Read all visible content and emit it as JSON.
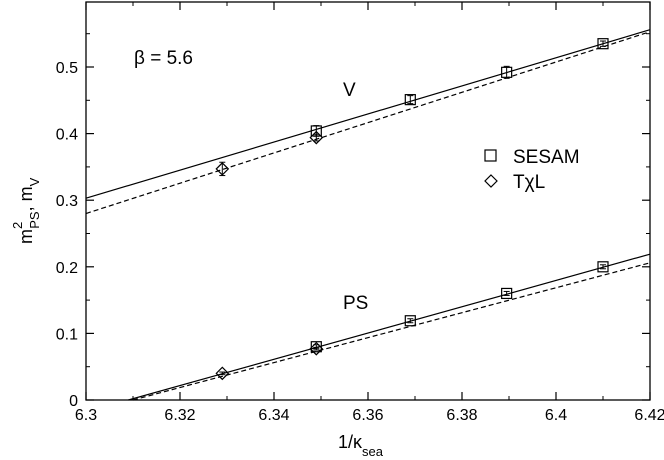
{
  "chart_data": {
    "type": "scatter",
    "xlabel": "1/κsea",
    "xlabel_main": "1/κ",
    "xlabel_sub": "sea",
    "ylabel": "m²PS, mV",
    "ylabel_parts": {
      "m1": "m",
      "sup": "2",
      "sub1": "PS",
      "sep": ", m",
      "sub2": "V"
    },
    "xlim": [
      6.3,
      6.42
    ],
    "ylim": [
      0,
      0.6
    ],
    "x_ticks": [
      "6.3",
      "6.32",
      "6.34",
      "6.36",
      "6.38",
      "6.4",
      "6.42"
    ],
    "y_ticks": [
      "0",
      "0.1",
      "0.2",
      "0.3",
      "0.4",
      "0.5"
    ],
    "grid": false,
    "legend_position": "right-middle",
    "annotations": {
      "beta": "β = 5.6",
      "v_label": "V",
      "ps_label": "PS"
    },
    "series": [
      {
        "name": "SESAM",
        "marker": "square",
        "points": [
          {
            "x": 6.349,
            "y": 0.404,
            "err": 0.008
          },
          {
            "x": 6.369,
            "y": 0.451,
            "err": 0.006
          },
          {
            "x": 6.3895,
            "y": 0.492,
            "err": 0.009
          },
          {
            "x": 6.41,
            "y": 0.535,
            "err": 0.004
          },
          {
            "x": 6.349,
            "y": 0.08,
            "err": 0.003
          },
          {
            "x": 6.369,
            "y": 0.119,
            "err": 0.003
          },
          {
            "x": 6.3895,
            "y": 0.16,
            "err": 0.003
          },
          {
            "x": 6.41,
            "y": 0.2,
            "err": 0.003
          }
        ]
      },
      {
        "name": "TχL",
        "marker": "diamond",
        "points": [
          {
            "x": 6.329,
            "y": 0.347,
            "err": 0.01
          },
          {
            "x": 6.349,
            "y": 0.394,
            "err": 0.005
          },
          {
            "x": 6.329,
            "y": 0.04,
            "err": 0.002
          },
          {
            "x": 6.349,
            "y": 0.077,
            "err": 0.002
          }
        ]
      }
    ],
    "fit_lines": [
      {
        "series": "SESAM",
        "style": "solid",
        "x": [
          6.3,
          6.42
        ],
        "y": [
          0.303,
          0.556
        ]
      },
      {
        "series": "TχL",
        "style": "dashed",
        "x": [
          6.3,
          6.42
        ],
        "y": [
          0.28,
          0.553
        ]
      },
      {
        "series": "SESAM",
        "style": "solid",
        "x": [
          6.309,
          6.42
        ],
        "y": [
          0.0,
          0.219
        ]
      },
      {
        "series": "TχL",
        "style": "dashed",
        "x": [
          6.31,
          6.42
        ],
        "y": [
          0.0,
          0.206
        ]
      }
    ]
  }
}
